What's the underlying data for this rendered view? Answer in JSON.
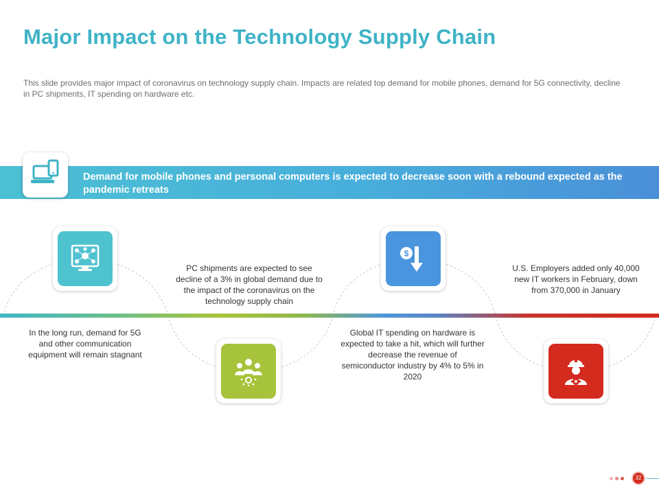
{
  "slide": {
    "title": "Major Impact on the Technology Supply Chain",
    "description": "This slide provides  major impact of coronavirus  on technology supply chain. Impacts are related top demand for mobile phones, demand for 5G connectivity, decline in PC shipments, IT spending on hardware  etc.",
    "page_number": "32"
  },
  "banner": {
    "text": "Demand for mobile phones and personal computers is expected to decrease soon with a rebound expected as the pandemic retreats",
    "icon": "laptop-phone-icon",
    "color": "#48aedb"
  },
  "items": [
    {
      "icon": "money-network-icon",
      "color": "#4fc2cf",
      "text": "In the long run, demand for 5G and other communication equipment will remain stagnant"
    },
    {
      "icon": "team-network-icon",
      "color": "#a6c33b",
      "text": "PC shipments are expected to see decline of a 3% in global demand due to the impact of the coronavirus on the technology supply chain"
    },
    {
      "icon": "dollar-down-arrow-icon",
      "color": "#4a95dd",
      "text": "Global IT spending on hardware is expected to take a hit, which will further decrease the revenue of semiconductor industry by 4% to 5% in 2020"
    },
    {
      "icon": "engineer-gear-icon",
      "color": "#d42b1f",
      "text": "U.S. Employers added only 40,000 new IT workers in February, down from 370,000 in January"
    }
  ],
  "colors": {
    "title": "#3fb3c6",
    "accent_red": "#d42b1f"
  }
}
